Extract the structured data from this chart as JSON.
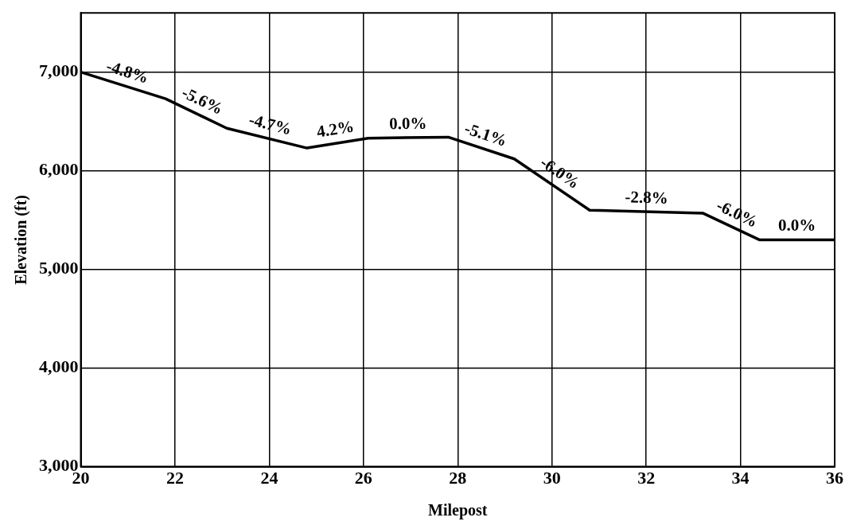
{
  "chart_data": {
    "type": "line",
    "xlabel": "Milepost",
    "ylabel": "Elevation (ft)",
    "xlim": [
      20,
      36
    ],
    "xticks": [
      20,
      22,
      24,
      26,
      28,
      30,
      32,
      34,
      36
    ],
    "ylim": [
      3000,
      7600
    ],
    "yticks": [
      {
        "value": 3000,
        "label": "3,000"
      },
      {
        "value": 4000,
        "label": "4,000"
      },
      {
        "value": 5000,
        "label": "5,000"
      },
      {
        "value": 6000,
        "label": "6,000"
      },
      {
        "value": 7000,
        "label": "7,000"
      }
    ],
    "grid": true,
    "legend": false,
    "marker": "none",
    "line_style": "solid",
    "series": [
      {
        "color": "#000000",
        "x": [
          20,
          21.8,
          23.1,
          24.8,
          26.1,
          27.8,
          29.2,
          30.8,
          33.2,
          34.4,
          36
        ],
        "values": [
          7000,
          6730,
          6430,
          6230,
          6330,
          6340,
          6120,
          5600,
          5570,
          5300,
          5300
        ]
      }
    ],
    "annotations": [
      "-4.8%",
      "-5.6%",
      "-4.7%",
      "4.2%",
      "0.0%",
      "-5.1%",
      "-6.0%",
      "-2.8%",
      "-6.0%",
      "0.0%"
    ]
  }
}
